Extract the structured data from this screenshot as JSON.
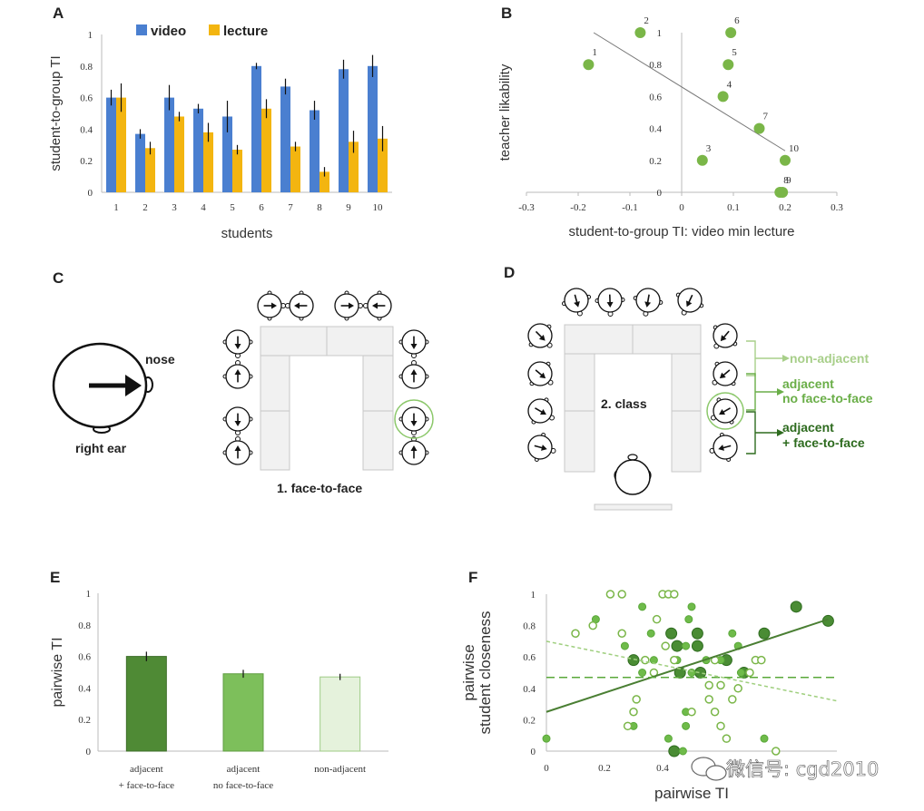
{
  "panels": {
    "a": "A",
    "b": "B",
    "c": "C",
    "d": "D",
    "e": "E",
    "f": "F"
  },
  "panel_c": {
    "nose": "nose",
    "right_ear": "right ear",
    "condition": "1. face-to-face"
  },
  "panel_d": {
    "condition": "2. class",
    "legend": {
      "non_adjacent": "non-adjacent",
      "adjacent_no_1": "adjacent",
      "adjacent_no_2": "no face-to-face",
      "adjacent_face_1": "adjacent",
      "adjacent_face_2": "+ face-to-face"
    },
    "colors": {
      "non_adjacent": "#a8cf8a",
      "adjacent_no": "#6aae48",
      "adjacent_face": "#2e6b1f"
    }
  },
  "watermark": "微信号: cgd2010",
  "chart_data": [
    {
      "id": "A",
      "type": "bar",
      "xlabel": "students",
      "ylabel": "student-to-group TI",
      "ylim": [
        0,
        1
      ],
      "yticks": [
        "0",
        "0.2",
        "0.4",
        "0.6",
        "0.8",
        "1"
      ],
      "categories": [
        "1",
        "2",
        "3",
        "4",
        "5",
        "6",
        "7",
        "8",
        "9",
        "10"
      ],
      "legend_position": "top-left",
      "series": [
        {
          "name": "video",
          "color": "#4a7fd0",
          "values": [
            0.6,
            0.37,
            0.6,
            0.53,
            0.48,
            0.8,
            0.67,
            0.52,
            0.78,
            0.8
          ],
          "errors": [
            0.05,
            0.03,
            0.08,
            0.03,
            0.1,
            0.02,
            0.05,
            0.06,
            0.06,
            0.07
          ]
        },
        {
          "name": "lecture",
          "color": "#f3b510",
          "values": [
            0.6,
            0.28,
            0.48,
            0.38,
            0.27,
            0.53,
            0.29,
            0.13,
            0.32,
            0.34
          ],
          "errors": [
            0.09,
            0.04,
            0.03,
            0.06,
            0.03,
            0.06,
            0.03,
            0.03,
            0.07,
            0.08
          ]
        }
      ]
    },
    {
      "id": "B",
      "type": "scatter",
      "xlabel": "student-to-group TI: video min lecture",
      "ylabel": "teacher likability",
      "xlim": [
        -0.3,
        0.3
      ],
      "ylim": [
        0,
        1
      ],
      "xticks": [
        "-0.3",
        "-0.2",
        "-0.1",
        "0",
        "0.1",
        "0.2",
        "0.3"
      ],
      "yticks": [
        "0",
        "0.2",
        "0.4",
        "0.6",
        "0.8",
        "1"
      ],
      "color": "#7ab648",
      "points": [
        {
          "label": "1",
          "x": -0.18,
          "y": 0.8
        },
        {
          "label": "2",
          "x": -0.08,
          "y": 1.0
        },
        {
          "label": "3",
          "x": 0.04,
          "y": 0.2
        },
        {
          "label": "4",
          "x": 0.08,
          "y": 0.6
        },
        {
          "label": "5",
          "x": 0.09,
          "y": 0.8
        },
        {
          "label": "6",
          "x": 0.095,
          "y": 1.0
        },
        {
          "label": "7",
          "x": 0.15,
          "y": 0.4
        },
        {
          "label": "8",
          "x": 0.19,
          "y": 0.0
        },
        {
          "label": "9",
          "x": 0.195,
          "y": 0.0
        },
        {
          "label": "10",
          "x": 0.2,
          "y": 0.2
        }
      ],
      "trendline": {
        "x": [
          -0.17,
          0.2
        ],
        "y": [
          1.0,
          0.26
        ]
      }
    },
    {
      "id": "E",
      "type": "bar",
      "ylabel": "pairwise TI",
      "ylim": [
        0,
        1
      ],
      "yticks": [
        "0",
        "0.2",
        "0.4",
        "0.6",
        "0.8",
        "1"
      ],
      "categories": [
        {
          "line1": "adjacent",
          "line2": "+ face-to-face"
        },
        {
          "line1": "adjacent",
          "line2": "no face-to-face"
        },
        {
          "line1": "non-adjacent",
          "line2": ""
        }
      ],
      "values": [
        0.6,
        0.49,
        0.47
      ],
      "errors": [
        0.03,
        0.025,
        0.02
      ],
      "colors": [
        "#4f8a35",
        "#7dbf5b",
        "#e5f2dc"
      ],
      "edge_colors": [
        "#3d6e29",
        "#5f9e42",
        "#9fcb86"
      ]
    },
    {
      "id": "F",
      "type": "scatter",
      "xlabel": "pairwise TI",
      "ylabel_line1": "pairwise",
      "ylabel_line2": "student closeness",
      "xlim": [
        0,
        1
      ],
      "ylim": [
        0,
        1
      ],
      "xticks": [
        "0",
        "0.2",
        "0.4"
      ],
      "yticks": [
        "0",
        "0.2",
        "0.4",
        "0.6",
        "0.8",
        "1"
      ],
      "series": [
        {
          "group": "adjacent-face",
          "color": "#2e6b1f",
          "fill": "#4a8c34",
          "size": 12,
          "points": [
            [
              0.3,
              0.58
            ],
            [
              0.43,
              0.75
            ],
            [
              0.45,
              0.67
            ],
            [
              0.46,
              0.5
            ],
            [
              0.52,
              0.67
            ],
            [
              0.52,
              0.75
            ],
            [
              0.53,
              0.5
            ],
            [
              0.62,
              0.58
            ],
            [
              0.68,
              0.5
            ],
            [
              0.75,
              0.75
            ],
            [
              0.86,
              0.92
            ],
            [
              0.97,
              0.83
            ],
            [
              0.44,
              0.0
            ]
          ]
        },
        {
          "group": "adjacent-no",
          "color": "#5aa83a",
          "fill": "#6fbb4a",
          "size": 8,
          "points": [
            [
              0.0,
              0.08
            ],
            [
              0.17,
              0.84
            ],
            [
              0.27,
              0.67
            ],
            [
              0.33,
              0.92
            ],
            [
              0.33,
              0.5
            ],
            [
              0.36,
              0.75
            ],
            [
              0.37,
              0.58
            ],
            [
              0.45,
              0.58
            ],
            [
              0.48,
              0.67
            ],
            [
              0.5,
              0.5
            ],
            [
              0.55,
              0.58
            ],
            [
              0.49,
              0.84
            ],
            [
              0.6,
              0.16
            ],
            [
              0.42,
              0.08
            ],
            [
              0.48,
              0.16
            ],
            [
              0.5,
              0.92
            ],
            [
              0.64,
              0.75
            ],
            [
              0.66,
              0.67
            ],
            [
              0.67,
              0.5
            ],
            [
              0.6,
              0.58
            ],
            [
              0.3,
              0.16
            ],
            [
              0.47,
              0.0
            ],
            [
              0.48,
              0.25
            ],
            [
              0.75,
              0.08
            ]
          ]
        },
        {
          "group": "non-adjacent",
          "color": "#7ab648",
          "fill": "none",
          "size": 8,
          "points": [
            [
              0.1,
              0.75
            ],
            [
              0.22,
              1.0
            ],
            [
              0.26,
              1.0
            ],
            [
              0.31,
              0.33
            ],
            [
              0.34,
              0.58
            ],
            [
              0.38,
              0.84
            ],
            [
              0.4,
              1.0
            ],
            [
              0.42,
              1.0
            ],
            [
              0.44,
              1.0
            ],
            [
              0.41,
              0.67
            ],
            [
              0.44,
              0.58
            ],
            [
              0.56,
              0.33
            ],
            [
              0.58,
              0.58
            ],
            [
              0.6,
              0.42
            ],
            [
              0.64,
              0.33
            ],
            [
              0.66,
              0.4
            ],
            [
              0.7,
              0.5
            ],
            [
              0.72,
              0.58
            ],
            [
              0.74,
              0.58
            ],
            [
              0.3,
              0.25
            ],
            [
              0.5,
              0.25
            ],
            [
              0.58,
              0.25
            ],
            [
              0.6,
              0.16
            ],
            [
              0.79,
              0.0
            ],
            [
              0.28,
              0.16
            ],
            [
              0.16,
              0.8
            ],
            [
              0.26,
              0.75
            ],
            [
              0.37,
              0.5
            ],
            [
              0.56,
              0.42
            ],
            [
              0.62,
              0.08
            ]
          ]
        }
      ],
      "trendlines": [
        {
          "group": "adjacent-face",
          "style": "solid",
          "color": "#4a7f33",
          "x": [
            0,
            0.97
          ],
          "y": [
            0.25,
            0.84
          ]
        },
        {
          "group": "adjacent-no",
          "style": "dashed",
          "color": "#5aa83a",
          "x": [
            0,
            1
          ],
          "y": [
            0.47,
            0.47
          ]
        },
        {
          "group": "non-adjacent",
          "style": "dotted",
          "color": "#9fcf7e",
          "x": [
            0,
            1
          ],
          "y": [
            0.7,
            0.32
          ]
        }
      ]
    }
  ]
}
